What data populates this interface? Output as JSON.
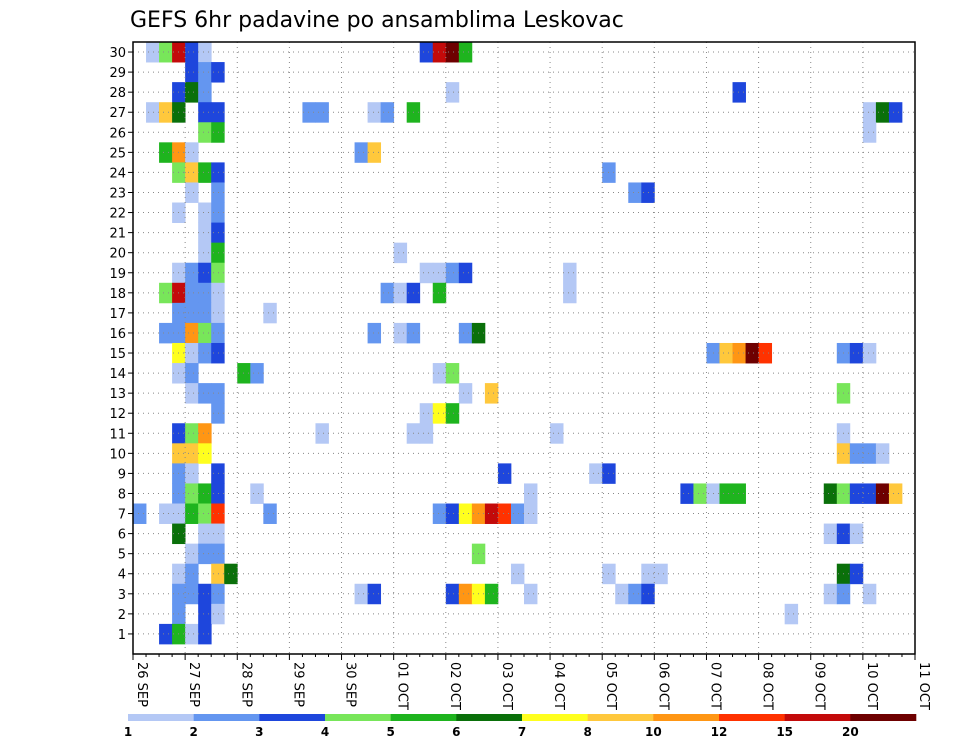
{
  "chart_data": {
    "type": "heatmap",
    "title": "GEFS 6hr padavine po ansamblima Leskovac",
    "y_ticks": [
      "1",
      "2",
      "3",
      "4",
      "5",
      "6",
      "7",
      "8",
      "9",
      "10",
      "11",
      "12",
      "13",
      "14",
      "15",
      "16",
      "17",
      "18",
      "19",
      "20",
      "21",
      "22",
      "23",
      "24",
      "25",
      "26",
      "27",
      "28",
      "29",
      "30"
    ],
    "x_ticks": [
      "26 SEP",
      "27 SEP",
      "28 SEP",
      "29 SEP",
      "30 SEP",
      "01 OCT",
      "02 OCT",
      "03 OCT",
      "04 OCT",
      "05 OCT",
      "06 OCT",
      "07 OCT",
      "08 OCT",
      "09 OCT",
      "10 OCT",
      "11 OCT"
    ],
    "time_steps_per_day": 4,
    "grid": true,
    "legend": {
      "position": "bottom",
      "labels": [
        "1",
        "2",
        "3",
        "4",
        "5",
        "6",
        "7",
        "8",
        "10",
        "12",
        "15",
        "20"
      ],
      "colors": [
        "#b4c8f5",
        "#6496f0",
        "#1e46dc",
        "#78e65a",
        "#1eb41e",
        "#0a700a",
        "#ffff1e",
        "#ffc83c",
        "#ff9614",
        "#ff3200",
        "#c30a0a",
        "#6e0000"
      ]
    },
    "cells": [
      [
        30,
        1,
        0
      ],
      [
        30,
        2,
        3
      ],
      [
        30,
        3,
        10
      ],
      [
        30,
        4,
        2
      ],
      [
        30,
        5,
        0
      ],
      [
        30,
        22,
        2
      ],
      [
        30,
        23,
        10
      ],
      [
        30,
        24,
        11
      ],
      [
        30,
        25,
        4
      ],
      [
        29,
        4,
        2
      ],
      [
        29,
        5,
        1
      ],
      [
        29,
        6,
        2
      ],
      [
        28,
        3,
        2
      ],
      [
        28,
        4,
        5
      ],
      [
        28,
        5,
        1
      ],
      [
        28,
        24,
        0
      ],
      [
        28,
        46,
        2
      ],
      [
        27,
        1,
        0
      ],
      [
        27,
        2,
        7
      ],
      [
        27,
        3,
        5
      ],
      [
        27,
        5,
        2
      ],
      [
        27,
        6,
        2
      ],
      [
        27,
        13,
        1
      ],
      [
        27,
        14,
        1
      ],
      [
        27,
        18,
        0
      ],
      [
        27,
        19,
        1
      ],
      [
        27,
        21,
        4
      ],
      [
        27,
        56,
        0
      ],
      [
        27,
        57,
        5
      ],
      [
        27,
        58,
        2
      ],
      [
        26,
        5,
        3
      ],
      [
        26,
        6,
        4
      ],
      [
        26,
        56,
        0
      ],
      [
        25,
        2,
        4
      ],
      [
        25,
        3,
        8
      ],
      [
        25,
        4,
        0
      ],
      [
        25,
        17,
        1
      ],
      [
        25,
        18,
        7
      ],
      [
        24,
        3,
        3
      ],
      [
        24,
        4,
        7
      ],
      [
        24,
        5,
        4
      ],
      [
        24,
        6,
        2
      ],
      [
        24,
        36,
        1
      ],
      [
        23,
        4,
        0
      ],
      [
        23,
        6,
        1
      ],
      [
        23,
        38,
        1
      ],
      [
        23,
        39,
        2
      ],
      [
        22,
        3,
        0
      ],
      [
        22,
        5,
        0
      ],
      [
        22,
        6,
        1
      ],
      [
        21,
        5,
        0
      ],
      [
        21,
        6,
        2
      ],
      [
        20,
        5,
        0
      ],
      [
        20,
        6,
        4
      ],
      [
        20,
        20,
        0
      ],
      [
        19,
        3,
        0
      ],
      [
        19,
        4,
        1
      ],
      [
        19,
        5,
        2
      ],
      [
        19,
        6,
        3
      ],
      [
        19,
        22,
        0
      ],
      [
        19,
        23,
        0
      ],
      [
        19,
        24,
        1
      ],
      [
        19,
        25,
        2
      ],
      [
        19,
        33,
        0
      ],
      [
        18,
        2,
        3
      ],
      [
        18,
        3,
        10
      ],
      [
        18,
        4,
        1
      ],
      [
        18,
        5,
        1
      ],
      [
        18,
        6,
        0
      ],
      [
        18,
        19,
        1
      ],
      [
        18,
        20,
        0
      ],
      [
        18,
        21,
        2
      ],
      [
        18,
        23,
        4
      ],
      [
        18,
        33,
        0
      ],
      [
        17,
        3,
        1
      ],
      [
        17,
        4,
        1
      ],
      [
        17,
        5,
        1
      ],
      [
        17,
        6,
        0
      ],
      [
        17,
        10,
        0
      ],
      [
        16,
        2,
        1
      ],
      [
        16,
        3,
        1
      ],
      [
        16,
        4,
        8
      ],
      [
        16,
        5,
        3
      ],
      [
        16,
        6,
        1
      ],
      [
        16,
        18,
        1
      ],
      [
        16,
        20,
        0
      ],
      [
        16,
        21,
        1
      ],
      [
        16,
        25,
        1
      ],
      [
        16,
        26,
        5
      ],
      [
        15,
        3,
        6
      ],
      [
        15,
        4,
        0
      ],
      [
        15,
        5,
        1
      ],
      [
        15,
        6,
        2
      ],
      [
        15,
        44,
        1
      ],
      [
        15,
        45,
        7
      ],
      [
        15,
        46,
        8
      ],
      [
        15,
        47,
        11
      ],
      [
        15,
        48,
        9
      ],
      [
        15,
        54,
        1
      ],
      [
        15,
        55,
        2
      ],
      [
        15,
        56,
        0
      ],
      [
        14,
        3,
        0
      ],
      [
        14,
        4,
        1
      ],
      [
        14,
        8,
        4
      ],
      [
        14,
        9,
        1
      ],
      [
        14,
        23,
        0
      ],
      [
        14,
        24,
        3
      ],
      [
        13,
        4,
        0
      ],
      [
        13,
        5,
        1
      ],
      [
        13,
        6,
        1
      ],
      [
        13,
        25,
        0
      ],
      [
        13,
        27,
        7
      ],
      [
        13,
        54,
        3
      ],
      [
        12,
        6,
        1
      ],
      [
        12,
        22,
        0
      ],
      [
        12,
        23,
        6
      ],
      [
        12,
        24,
        4
      ],
      [
        11,
        3,
        2
      ],
      [
        11,
        4,
        3
      ],
      [
        11,
        5,
        8
      ],
      [
        11,
        14,
        0
      ],
      [
        11,
        21,
        0
      ],
      [
        11,
        22,
        0
      ],
      [
        11,
        32,
        0
      ],
      [
        11,
        54,
        0
      ],
      [
        10,
        3,
        7
      ],
      [
        10,
        4,
        7
      ],
      [
        10,
        5,
        6
      ],
      [
        10,
        54,
        7
      ],
      [
        10,
        55,
        1
      ],
      [
        10,
        56,
        1
      ],
      [
        10,
        57,
        0
      ],
      [
        9,
        3,
        1
      ],
      [
        9,
        4,
        0
      ],
      [
        9,
        6,
        2
      ],
      [
        9,
        28,
        2
      ],
      [
        9,
        35,
        0
      ],
      [
        9,
        36,
        2
      ],
      [
        8,
        3,
        1
      ],
      [
        8,
        4,
        3
      ],
      [
        8,
        5,
        4
      ],
      [
        8,
        6,
        2
      ],
      [
        8,
        9,
        0
      ],
      [
        8,
        30,
        0
      ],
      [
        8,
        42,
        2
      ],
      [
        8,
        43,
        3
      ],
      [
        8,
        44,
        0
      ],
      [
        8,
        45,
        4
      ],
      [
        8,
        46,
        4
      ],
      [
        8,
        53,
        5
      ],
      [
        8,
        54,
        3
      ],
      [
        8,
        55,
        2
      ],
      [
        8,
        56,
        2
      ],
      [
        8,
        57,
        11
      ],
      [
        8,
        58,
        7
      ],
      [
        7,
        0,
        1
      ],
      [
        7,
        2,
        0
      ],
      [
        7,
        3,
        0
      ],
      [
        7,
        4,
        4
      ],
      [
        7,
        5,
        3
      ],
      [
        7,
        6,
        9
      ],
      [
        7,
        10,
        1
      ],
      [
        7,
        23,
        1
      ],
      [
        7,
        24,
        2
      ],
      [
        7,
        25,
        6
      ],
      [
        7,
        26,
        8
      ],
      [
        7,
        27,
        10
      ],
      [
        7,
        28,
        9
      ],
      [
        7,
        29,
        1
      ],
      [
        7,
        30,
        0
      ],
      [
        6,
        3,
        5
      ],
      [
        6,
        5,
        0
      ],
      [
        6,
        6,
        0
      ],
      [
        6,
        53,
        0
      ],
      [
        6,
        54,
        2
      ],
      [
        6,
        55,
        0
      ],
      [
        5,
        4,
        0
      ],
      [
        5,
        5,
        1
      ],
      [
        5,
        6,
        1
      ],
      [
        5,
        26,
        3
      ],
      [
        4,
        3,
        0
      ],
      [
        4,
        4,
        1
      ],
      [
        4,
        6,
        7
      ],
      [
        4,
        7,
        5
      ],
      [
        4,
        29,
        0
      ],
      [
        4,
        36,
        0
      ],
      [
        4,
        39,
        0
      ],
      [
        4,
        40,
        0
      ],
      [
        4,
        54,
        5
      ],
      [
        4,
        55,
        2
      ],
      [
        3,
        3,
        1
      ],
      [
        3,
        4,
        1
      ],
      [
        3,
        5,
        2
      ],
      [
        3,
        6,
        1
      ],
      [
        3,
        17,
        0
      ],
      [
        3,
        18,
        2
      ],
      [
        3,
        24,
        2
      ],
      [
        3,
        25,
        8
      ],
      [
        3,
        26,
        6
      ],
      [
        3,
        27,
        4
      ],
      [
        3,
        30,
        0
      ],
      [
        3,
        37,
        0
      ],
      [
        3,
        38,
        1
      ],
      [
        3,
        39,
        2
      ],
      [
        3,
        53,
        0
      ],
      [
        3,
        54,
        1
      ],
      [
        3,
        56,
        0
      ],
      [
        2,
        3,
        1
      ],
      [
        2,
        5,
        2
      ],
      [
        2,
        6,
        0
      ],
      [
        2,
        50,
        0
      ],
      [
        1,
        2,
        2
      ],
      [
        1,
        3,
        4
      ],
      [
        1,
        4,
        0
      ],
      [
        1,
        5,
        2
      ]
    ]
  }
}
